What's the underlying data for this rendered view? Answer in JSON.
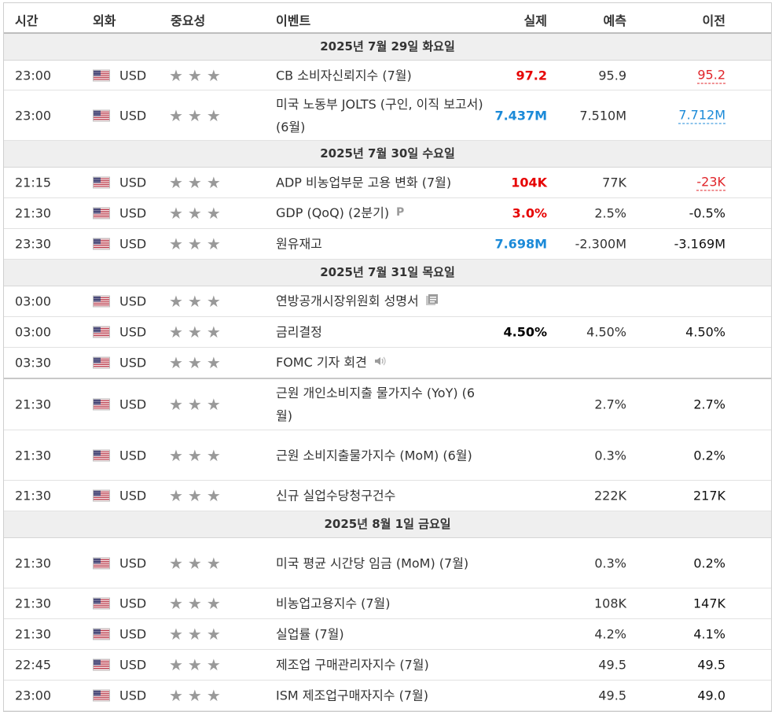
{
  "header": {
    "time": "시간",
    "currency": "외화",
    "importance": "중요성",
    "event": "이벤트",
    "actual": "실제",
    "forecast": "예측",
    "previous": "이전"
  },
  "rows": [
    {
      "type": "day",
      "label": "2025년 7월 29일 화요일"
    },
    {
      "type": "event",
      "time": "23:00",
      "currency": "USD",
      "stars": "★★★",
      "event": "CB 소비자신뢰지수 (7월)",
      "actual": "97.2",
      "actual_color": "red",
      "forecast": "95.9",
      "previous": "95.2",
      "previous_style": "ul-red",
      "h": 37
    },
    {
      "type": "event",
      "time": "23:00",
      "currency": "USD",
      "stars": "★★★",
      "event": "미국 노동부 JOLTS (구인, 이직 보고서) (6월)",
      "actual": "7.437M",
      "actual_color": "blue",
      "forecast": "7.510M",
      "previous": "7.712M",
      "previous_style": "ul-blue",
      "h": 63
    },
    {
      "type": "day",
      "label": "2025년 7월 30일 수요일"
    },
    {
      "type": "event",
      "time": "21:15",
      "currency": "USD",
      "stars": "★★★",
      "event": "ADP 비농업부문 고용 변화 (7월)",
      "actual": "104K",
      "actual_color": "red",
      "forecast": "77K",
      "previous": "-23K",
      "previous_style": "ul-red",
      "h": 38
    },
    {
      "type": "event",
      "time": "21:30",
      "currency": "USD",
      "stars": "★★★",
      "event": "GDP (QoQ) (2분기)",
      "icon": "preliminary-icon",
      "actual": "3.0%",
      "actual_color": "red",
      "forecast": "2.5%",
      "previous": "-0.5%",
      "previous_style": "",
      "h": 38
    },
    {
      "type": "event",
      "time": "23:30",
      "currency": "USD",
      "stars": "★★★",
      "event": "원유재고",
      "actual": "7.698M",
      "actual_color": "blue",
      "forecast": "-2.300M",
      "previous": "-3.169M",
      "previous_style": "",
      "h": 38
    },
    {
      "type": "day",
      "label": "2025년 7월 31일 목요일"
    },
    {
      "type": "event",
      "time": "03:00",
      "currency": "USD",
      "stars": "★★★",
      "event": "연방공개시장위원회 성명서",
      "icon": "document-icon",
      "actual": "",
      "actual_color": "",
      "forecast": "",
      "previous": "",
      "previous_style": "",
      "h": 38
    },
    {
      "type": "event",
      "time": "03:00",
      "currency": "USD",
      "stars": "★★★",
      "event": "금리결정",
      "actual": "4.50%",
      "actual_color": "black",
      "forecast": "4.50%",
      "previous": "4.50%",
      "previous_style": "",
      "h": 38
    },
    {
      "type": "event",
      "time": "03:30",
      "currency": "USD",
      "stars": "★★★",
      "event": "FOMC 기자 회견",
      "icon": "speaker-icon",
      "actual": "",
      "actual_color": "",
      "forecast": "",
      "previous": "",
      "previous_style": "",
      "h": 38,
      "sep": true
    },
    {
      "type": "event",
      "time": "21:30",
      "currency": "USD",
      "stars": "★★★",
      "event": "근원 개인소비지출 물가지수 (YoY) (6월)",
      "actual": "",
      "actual_color": "",
      "forecast": "2.7%",
      "previous": "2.7%",
      "previous_style": "",
      "h": 64
    },
    {
      "type": "event",
      "time": "21:30",
      "currency": "USD",
      "stars": "★★★",
      "event": "근원 소비지출물가지수 (MoM) (6월)",
      "actual": "",
      "actual_color": "",
      "forecast": "0.3%",
      "previous": "0.2%",
      "previous_style": "",
      "h": 63
    },
    {
      "type": "event",
      "time": "21:30",
      "currency": "USD",
      "stars": "★★★",
      "event": "신규 실업수당청구건수",
      "actual": "",
      "actual_color": "",
      "forecast": "222K",
      "previous": "217K",
      "previous_style": "",
      "h": 38
    },
    {
      "type": "day",
      "label": "2025년 8월 1일 금요일"
    },
    {
      "type": "event",
      "time": "21:30",
      "currency": "USD",
      "stars": "★★★",
      "event": "미국 평균 시간당 임금 (MoM) (7월)",
      "actual": "",
      "actual_color": "",
      "forecast": "0.3%",
      "previous": "0.2%",
      "previous_style": "",
      "h": 63
    },
    {
      "type": "event",
      "time": "21:30",
      "currency": "USD",
      "stars": "★★★",
      "event": "비농업고용지수 (7월)",
      "actual": "",
      "actual_color": "",
      "forecast": "108K",
      "previous": "147K",
      "previous_style": "",
      "h": 38
    },
    {
      "type": "event",
      "time": "21:30",
      "currency": "USD",
      "stars": "★★★",
      "event": "실업률 (7월)",
      "actual": "",
      "actual_color": "",
      "forecast": "4.2%",
      "previous": "4.1%",
      "previous_style": "",
      "h": 38
    },
    {
      "type": "event",
      "time": "22:45",
      "currency": "USD",
      "stars": "★★★",
      "event": "제조업 구매관리자지수 (7월)",
      "actual": "",
      "actual_color": "",
      "forecast": "49.5",
      "previous": "49.5",
      "previous_style": "",
      "h": 38
    },
    {
      "type": "event",
      "time": "23:00",
      "currency": "USD",
      "stars": "★★★",
      "event": "ISM 제조업구매자지수 (7월)",
      "actual": "",
      "actual_color": "",
      "forecast": "49.5",
      "previous": "49.0",
      "previous_style": "",
      "h": 38
    }
  ]
}
